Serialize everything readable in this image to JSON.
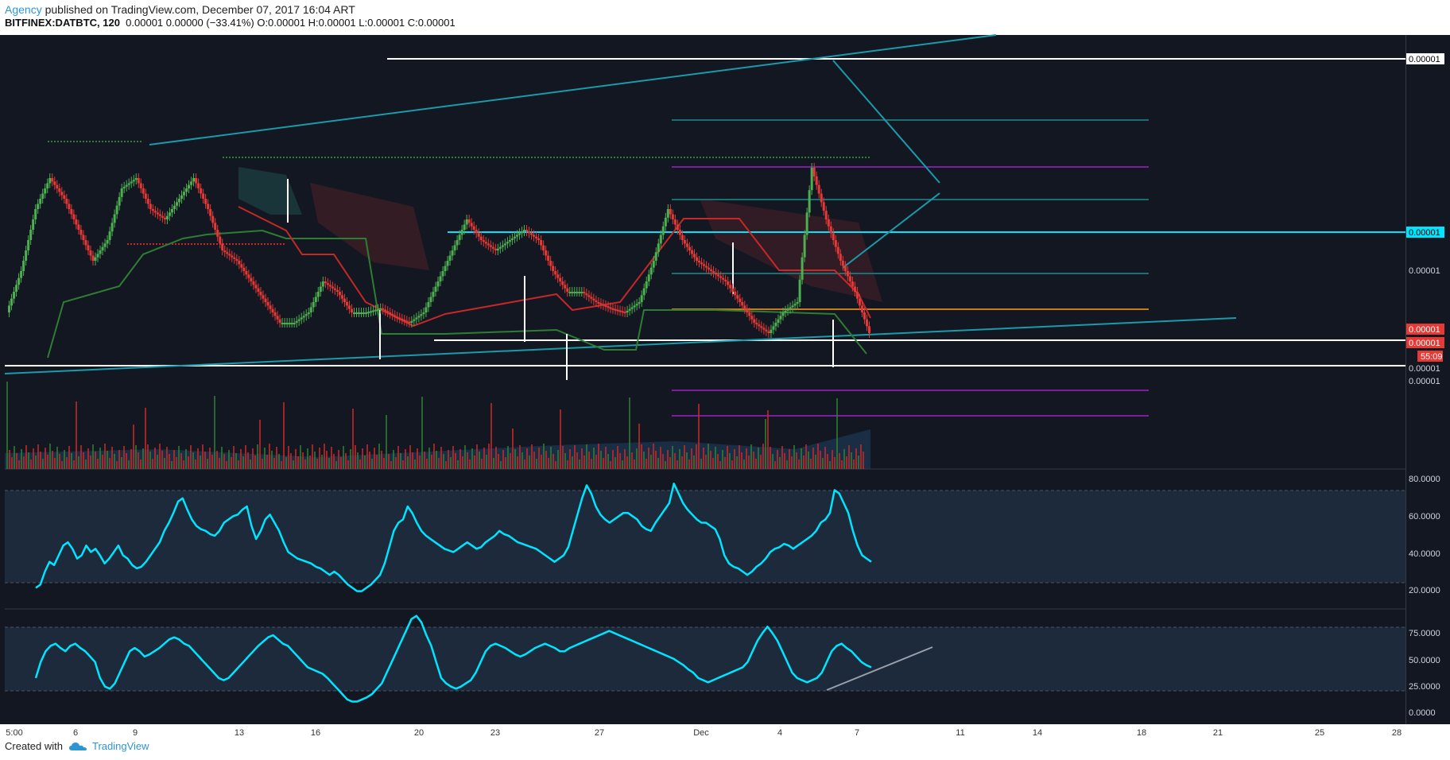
{
  "header": {
    "author": "Agency",
    "published": "published on TradingView.com, December 07, 2017 16:04 ART",
    "symbol": "BITFINEX:DATBTC, 120",
    "ohlc": "0.00001 0.00000 (−33.41%) O:0.00001 H:0.00001 L:0.00001 C:0.00001"
  },
  "footer": {
    "created_with": "Created with",
    "brand": "TradingView"
  },
  "colors": {
    "background": "#131722",
    "cyan": "#00e5ff",
    "up": "#4caf50",
    "down": "#e53935",
    "purple": "#7b1fa2",
    "orange": "#c77c1a"
  },
  "chart_data": [
    {
      "type": "line",
      "title": "BITFINEX:DATBTC, 120",
      "x_tick_labels": [
        "5:00",
        "6",
        "9",
        "13",
        "16",
        "20",
        "23",
        "27",
        "Dec",
        "4",
        "7",
        "11",
        "14",
        "18",
        "21",
        "25",
        "28"
      ],
      "y_price_labels": [
        "0.00001",
        "0.00001",
        "0.00001",
        "0.00001",
        "0.00001",
        "0.00001",
        "0.00001"
      ],
      "countdown": "55:09",
      "price_series": [
        0.2,
        0.4,
        0.7,
        0.85,
        0.75,
        0.6,
        0.45,
        0.55,
        0.8,
        0.85,
        0.7,
        0.65,
        0.75,
        0.85,
        0.7,
        0.5,
        0.45,
        0.35,
        0.25,
        0.15,
        0.15,
        0.2,
        0.35,
        0.3,
        0.2,
        0.2,
        0.22,
        0.18,
        0.15,
        0.2,
        0.35,
        0.5,
        0.65,
        0.55,
        0.5,
        0.55,
        0.6,
        0.55,
        0.4,
        0.3,
        0.3,
        0.25,
        0.22,
        0.2,
        0.25,
        0.45,
        0.7,
        0.55,
        0.45,
        0.4,
        0.35,
        0.25,
        0.15,
        0.1,
        0.2,
        0.25,
        0.9,
        0.65,
        0.45,
        0.3,
        0.1
      ]
    },
    {
      "type": "line",
      "y_tick_labels": [
        "80.0000",
        "60.0000",
        "40.0000",
        "20.0000"
      ],
      "ylim": [
        10,
        90
      ],
      "values": [
        20,
        22,
        30,
        36,
        34,
        40,
        46,
        48,
        44,
        38,
        40,
        46,
        42,
        44,
        40,
        35,
        38,
        42,
        46,
        40,
        38,
        34,
        32,
        33,
        36,
        40,
        44,
        48,
        55,
        60,
        66,
        73,
        75,
        68,
        62,
        58,
        56,
        55,
        53,
        52,
        55,
        60,
        62,
        64,
        65,
        68,
        70,
        58,
        50,
        55,
        62,
        65,
        60,
        55,
        48,
        42,
        40,
        38,
        37,
        36,
        35,
        33,
        32,
        30,
        28,
        30,
        28,
        25,
        22,
        20,
        18,
        18,
        20,
        22,
        25,
        28,
        35,
        45,
        55,
        60,
        62,
        70,
        66,
        60,
        55,
        52,
        50,
        48,
        46,
        44,
        43,
        42,
        44,
        46,
        48,
        46,
        44,
        45,
        48,
        50,
        52,
        55,
        53,
        52,
        50,
        48,
        47,
        46,
        45,
        44,
        42,
        40,
        38,
        36,
        38,
        40,
        45,
        55,
        65,
        75,
        83,
        78,
        70,
        65,
        62,
        60,
        62,
        64,
        66,
        66,
        64,
        62,
        58,
        56,
        55,
        60,
        64,
        68,
        72,
        84,
        78,
        72,
        68,
        65,
        62,
        60,
        60,
        58,
        56,
        50,
        40,
        35,
        33,
        32,
        30,
        28,
        30,
        33,
        35,
        38,
        42,
        44,
        45,
        47,
        46,
        44,
        46,
        48,
        50,
        52,
        55,
        60,
        62,
        66,
        80,
        78,
        72,
        66,
        55,
        46,
        40,
        38,
        36
      ]
    },
    {
      "type": "line",
      "y_tick_labels": [
        "75.0000",
        "50.0000",
        "25.0000",
        "0.0000"
      ],
      "ylim": [
        -2,
        90
      ],
      "values": [
        30,
        45,
        55,
        60,
        62,
        58,
        55,
        60,
        62,
        58,
        55,
        50,
        45,
        30,
        22,
        20,
        25,
        35,
        45,
        55,
        58,
        55,
        50,
        52,
        55,
        58,
        62,
        66,
        68,
        66,
        62,
        60,
        55,
        50,
        45,
        40,
        35,
        30,
        28,
        30,
        35,
        40,
        45,
        50,
        55,
        60,
        64,
        68,
        70,
        66,
        62,
        60,
        55,
        50,
        45,
        40,
        38,
        36,
        34,
        30,
        25,
        20,
        15,
        10,
        8,
        8,
        10,
        12,
        15,
        20,
        25,
        35,
        45,
        55,
        65,
        75,
        85,
        88,
        82,
        70,
        60,
        45,
        30,
        25,
        22,
        20,
        22,
        25,
        28,
        35,
        45,
        55,
        60,
        62,
        60,
        58,
        55,
        52,
        50,
        52,
        55,
        58,
        60,
        62,
        60,
        58,
        55,
        55,
        58,
        60,
        62,
        64,
        66,
        68,
        70,
        72,
        74,
        72,
        70,
        68,
        66,
        64,
        62,
        60,
        58,
        56,
        54,
        52,
        50,
        48,
        45,
        42,
        38,
        35,
        30,
        28,
        26,
        28,
        30,
        32,
        34,
        36,
        38,
        40,
        45,
        55,
        65,
        72,
        78,
        72,
        65,
        55,
        45,
        35,
        30,
        28,
        26,
        28,
        30,
        35,
        45,
        55,
        60,
        62,
        58,
        55,
        50,
        45,
        42,
        40
      ]
    }
  ]
}
